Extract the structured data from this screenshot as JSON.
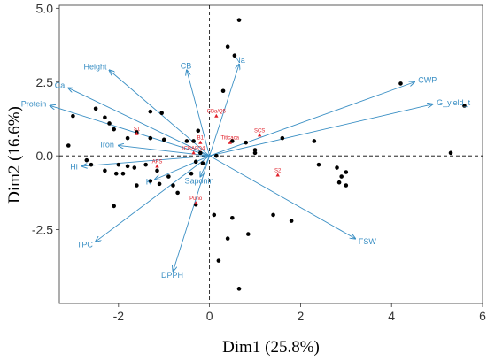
{
  "chart_data": {
    "type": "scatter",
    "title": "",
    "xlabel": "Dim1 (25.8%)",
    "ylabel": "Dim2 (16.6%)",
    "xlim": [
      -3.3,
      6.0
    ],
    "ylim": [
      -5.0,
      5.1
    ],
    "xticks": [
      -2,
      0,
      2,
      4,
      6
    ],
    "yticks": [
      -2.5,
      0.0,
      2.5,
      5.0
    ],
    "xtick_labels": [
      "-2",
      "0",
      "2",
      "4",
      "6"
    ],
    "ytick_labels": [
      "-2.5",
      "0.0",
      "2.5",
      "5.0"
    ],
    "grid": false,
    "reference_lines": {
      "x": 0,
      "y": 0,
      "style": "dashed"
    },
    "colors": {
      "points": "#000000",
      "variables": "#3a8fc4",
      "groups": "#e0202a",
      "frame": "#333333"
    },
    "individuals": [
      {
        "x": 0.65,
        "y": 4.6
      },
      {
        "x": 0.4,
        "y": 3.7
      },
      {
        "x": 0.55,
        "y": 3.4
      },
      {
        "x": 0.3,
        "y": 2.2
      },
      {
        "x": -2.5,
        "y": 1.6
      },
      {
        "x": -2.2,
        "y": 1.1
      },
      {
        "x": -1.3,
        "y": 1.5
      },
      {
        "x": -1.05,
        "y": 1.45
      },
      {
        "x": -2.3,
        "y": 1.3
      },
      {
        "x": -2.1,
        "y": 0.9
      },
      {
        "x": -1.6,
        "y": 0.8
      },
      {
        "x": -1.8,
        "y": 0.6
      },
      {
        "x": -1.3,
        "y": 0.6
      },
      {
        "x": -1.0,
        "y": 0.55
      },
      {
        "x": -3.0,
        "y": 1.35
      },
      {
        "x": -3.1,
        "y": 0.35
      },
      {
        "x": -2.7,
        "y": -0.15
      },
      {
        "x": -2.6,
        "y": -0.3
      },
      {
        "x": -2.3,
        "y": -0.5
      },
      {
        "x": -2.0,
        "y": -0.3
      },
      {
        "x": -1.8,
        "y": -0.35
      },
      {
        "x": -1.65,
        "y": -0.4
      },
      {
        "x": -1.4,
        "y": -0.3
      },
      {
        "x": -1.15,
        "y": -0.5
      },
      {
        "x": -0.9,
        "y": -0.7
      },
      {
        "x": -1.9,
        "y": -0.6
      },
      {
        "x": -2.05,
        "y": -0.6
      },
      {
        "x": -1.3,
        "y": -0.85
      },
      {
        "x": -1.6,
        "y": -1.0
      },
      {
        "x": -1.1,
        "y": -0.95
      },
      {
        "x": -0.8,
        "y": -1.0
      },
      {
        "x": -0.4,
        "y": -0.6
      },
      {
        "x": -0.3,
        "y": -0.2
      },
      {
        "x": -0.2,
        "y": 0.1
      },
      {
        "x": -0.35,
        "y": 0.5
      },
      {
        "x": -0.5,
        "y": 0.5
      },
      {
        "x": -0.25,
        "y": 0.85
      },
      {
        "x": -2.1,
        "y": -1.7
      },
      {
        "x": -0.7,
        "y": -1.25
      },
      {
        "x": -0.3,
        "y": -1.65
      },
      {
        "x": 0.1,
        "y": -2.0
      },
      {
        "x": 0.5,
        "y": -2.1
      },
      {
        "x": 0.85,
        "y": -2.65
      },
      {
        "x": 0.4,
        "y": -2.8
      },
      {
        "x": 0.2,
        "y": -3.55
      },
      {
        "x": 0.65,
        "y": -4.5
      },
      {
        "x": 1.4,
        "y": -2.0
      },
      {
        "x": 1.8,
        "y": -2.2
      },
      {
        "x": 0.5,
        "y": 0.5
      },
      {
        "x": 0.8,
        "y": 0.45
      },
      {
        "x": 1.0,
        "y": 0.2
      },
      {
        "x": 1.6,
        "y": 0.6
      },
      {
        "x": 2.3,
        "y": 0.5
      },
      {
        "x": 1.0,
        "y": 0.1
      },
      {
        "x": 2.8,
        "y": -0.4
      },
      {
        "x": 2.9,
        "y": -0.7
      },
      {
        "x": 2.85,
        "y": -0.9
      },
      {
        "x": 3.0,
        "y": -1.0
      },
      {
        "x": 2.4,
        "y": -0.3
      },
      {
        "x": 3.0,
        "y": -0.55
      },
      {
        "x": 4.2,
        "y": 2.45
      },
      {
        "x": 5.6,
        "y": 1.7
      },
      {
        "x": 5.3,
        "y": 0.1
      },
      {
        "x": 0.15,
        "y": 0.0
      },
      {
        "x": -0.15,
        "y": -0.25
      }
    ],
    "variables": [
      {
        "name": "Height",
        "x": -2.2,
        "y": 2.9
      },
      {
        "name": "Ca",
        "x": -3.1,
        "y": 2.3
      },
      {
        "name": "Protein",
        "x": -3.5,
        "y": 1.7
      },
      {
        "name": "CB",
        "x": -0.5,
        "y": 2.9
      },
      {
        "name": "Na",
        "x": 0.65,
        "y": 3.1
      },
      {
        "name": "Iron",
        "x": -2.0,
        "y": 0.35
      },
      {
        "name": "Hi",
        "x": -2.8,
        "y": -0.35
      },
      {
        "name": "K",
        "x": -1.2,
        "y": -0.8
      },
      {
        "name": "Saponin",
        "x": -0.2,
        "y": -0.7
      },
      {
        "name": "TPC",
        "x": -2.5,
        "y": -2.9
      },
      {
        "name": "DPPH",
        "x": -0.8,
        "y": -3.9
      },
      {
        "name": "CWP",
        "x": 4.5,
        "y": 2.5
      },
      {
        "name": "G_yield_t",
        "x": 4.9,
        "y": 1.75
      },
      {
        "name": "FSW",
        "x": 3.2,
        "y": -2.8
      }
    ],
    "groups": [
      {
        "name": "CBa/Q5",
        "x": 0.15,
        "y": 1.35
      },
      {
        "name": "S1",
        "x": -1.6,
        "y": 0.75
      },
      {
        "name": "Titicaca",
        "x": 0.45,
        "y": 0.45
      },
      {
        "name": "SCS",
        "x": 1.1,
        "y": 0.7
      },
      {
        "name": "B1",
        "x": -0.2,
        "y": 0.45
      },
      {
        "name": "ICBA9Q4",
        "x": -0.35,
        "y": 0.1
      },
      {
        "name": "S2",
        "x": 1.5,
        "y": -0.65
      },
      {
        "name": "AFS",
        "x": -1.15,
        "y": -0.35
      },
      {
        "name": "Puno",
        "x": -0.3,
        "y": -1.6
      }
    ]
  }
}
